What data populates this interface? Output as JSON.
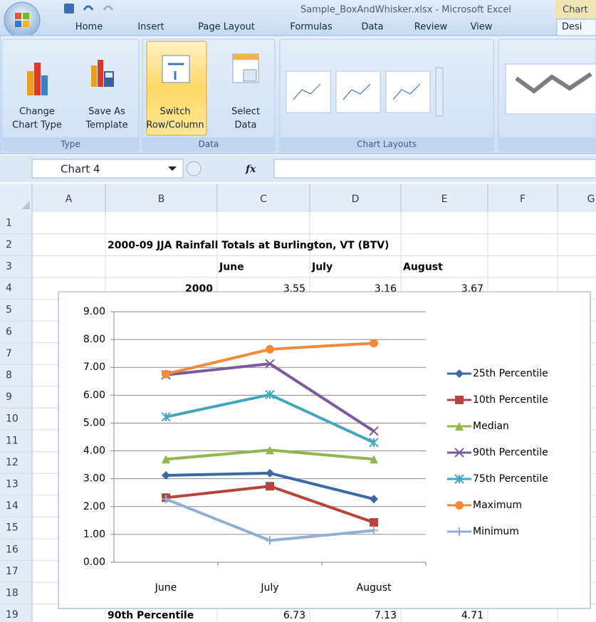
{
  "title_bar": {
    "document_title": "Sample_BoxAndWhisker.xlsx - Microsoft Excel",
    "context_tab": "Chart"
  },
  "tabs": [
    "Home",
    "Insert",
    "Page Layout",
    "Formulas",
    "Data",
    "Review",
    "View",
    "Desi"
  ],
  "ribbon": {
    "groups": [
      {
        "name": "Type",
        "buttons": [
          {
            "lines": [
              "Change",
              "Chart Type"
            ]
          },
          {
            "lines": [
              "Save As",
              "Template"
            ]
          }
        ]
      },
      {
        "name": "Data",
        "buttons": [
          {
            "lines": [
              "Switch",
              "Row/Column"
            ]
          },
          {
            "lines": [
              "Select",
              "Data"
            ]
          }
        ]
      },
      {
        "name": "Chart Layouts"
      }
    ]
  },
  "formula_bar": {
    "name_box": "Chart 4",
    "function_label": "fx"
  },
  "sheet": {
    "columns": [
      "A",
      "B",
      "C",
      "D",
      "E",
      "F",
      "G"
    ],
    "rows": [
      {
        "number": 1
      },
      {
        "number": 2,
        "cells": [
          null,
          "2000-09 JJA Rainfall Totals at Burlington, VT (BTV)"
        ]
      },
      {
        "number": 3,
        "cells": [
          null,
          null,
          "June",
          "July",
          "August"
        ]
      },
      {
        "number": 4,
        "cells": [
          null,
          2000,
          3.55,
          3.16,
          3.67
        ]
      },
      {
        "number": 5
      },
      {
        "number": 6
      },
      {
        "number": 7
      },
      {
        "number": 8
      },
      {
        "number": 9
      },
      {
        "number": 10
      },
      {
        "number": 11
      },
      {
        "number": 12
      },
      {
        "number": 13
      },
      {
        "number": 14
      },
      {
        "number": 15
      },
      {
        "number": 16
      },
      {
        "number": 17
      },
      {
        "number": 18
      },
      {
        "number": 19,
        "cells": [
          null,
          "90th Percentile",
          6.73,
          7.13,
          4.71
        ]
      }
    ]
  },
  "chart_data": {
    "type": "line",
    "categories": [
      "June",
      "July",
      "August"
    ],
    "ylim": [
      0,
      9
    ],
    "yticks": [
      {
        "value": 0,
        "label": "0.00"
      },
      {
        "value": 1,
        "label": "1.00"
      },
      {
        "value": 2,
        "label": "2.00"
      },
      {
        "value": 3,
        "label": "3.00"
      },
      {
        "value": 4,
        "label": "4.00"
      },
      {
        "value": 5,
        "label": "5.00"
      },
      {
        "value": 6,
        "label": "6.00"
      },
      {
        "value": 7,
        "label": "7.00"
      },
      {
        "value": 8,
        "label": "8.00"
      },
      {
        "value": 9,
        "label": "9.00"
      }
    ],
    "grid": true,
    "legend": "right",
    "series": [
      {
        "name": "25th Percentile",
        "color": "#3c68a6",
        "marker": "diamond",
        "values": [
          3.12,
          3.2,
          2.27
        ]
      },
      {
        "name": "10th Percentile",
        "color": "#b5443f",
        "marker": "square",
        "values": [
          2.32,
          2.73,
          1.43
        ]
      },
      {
        "name": "Median",
        "color": "#93b551",
        "marker": "triangle",
        "values": [
          3.7,
          4.03,
          3.7
        ]
      },
      {
        "name": "90th Percentile",
        "color": "#7a5b9c",
        "marker": "x",
        "values": [
          6.73,
          7.13,
          4.71
        ]
      },
      {
        "name": "75th Percentile",
        "color": "#45a5bd",
        "marker": "star",
        "values": [
          5.22,
          6.02,
          4.3
        ]
      },
      {
        "name": "Maximum",
        "color": "#f08b3b",
        "marker": "circle",
        "values": [
          6.76,
          7.65,
          7.87
        ]
      },
      {
        "name": "Minimum",
        "color": "#93aed3",
        "marker": "plus",
        "values": [
          2.27,
          0.78,
          1.14
        ]
      }
    ]
  }
}
